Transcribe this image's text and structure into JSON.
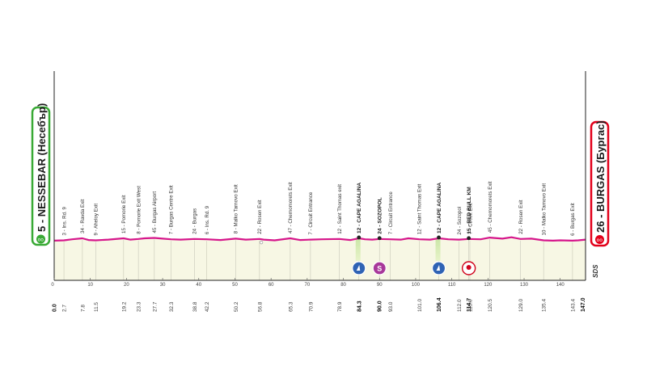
{
  "start": {
    "name": "5 - NESSEBAR (Несебър)",
    "color": "#39a935"
  },
  "finish": {
    "name": "26 - BURGAS (Бургас)",
    "color": "#e2001a"
  },
  "watermark": "SDS",
  "profile_color": "#d6168b",
  "area_color": "#f7f7e4",
  "chart_data": {
    "type": "area",
    "x_ticks": [
      0,
      10,
      20,
      30,
      40,
      50,
      60,
      70,
      80,
      90,
      100,
      110,
      120,
      130,
      140
    ],
    "xlim": [
      0,
      147
    ],
    "elevation": [
      [
        0,
        5
      ],
      [
        2.7,
        6
      ],
      [
        5,
        9
      ],
      [
        7.8,
        12
      ],
      [
        9.5,
        7
      ],
      [
        11.5,
        6
      ],
      [
        15,
        8
      ],
      [
        19.2,
        12
      ],
      [
        21,
        8
      ],
      [
        23.3,
        10
      ],
      [
        25,
        12
      ],
      [
        27.7,
        13
      ],
      [
        30,
        11
      ],
      [
        32.3,
        9
      ],
      [
        35,
        8
      ],
      [
        38.8,
        10
      ],
      [
        42.2,
        9
      ],
      [
        46,
        7
      ],
      [
        50.2,
        11
      ],
      [
        53,
        8
      ],
      [
        56.8,
        10
      ],
      [
        58,
        8
      ],
      [
        61,
        6
      ],
      [
        65.3,
        12
      ],
      [
        68,
        7
      ],
      [
        70.9,
        8
      ],
      [
        74,
        9
      ],
      [
        78.9,
        10
      ],
      [
        82,
        7
      ],
      [
        84.3,
        12
      ],
      [
        86,
        9
      ],
      [
        88,
        8
      ],
      [
        90,
        10
      ],
      [
        93,
        9
      ],
      [
        96,
        8
      ],
      [
        98,
        12
      ],
      [
        101,
        9
      ],
      [
        104,
        8
      ],
      [
        106.4,
        12
      ],
      [
        109,
        9
      ],
      [
        112,
        8
      ],
      [
        114.7,
        10
      ],
      [
        118,
        9
      ],
      [
        120.5,
        14
      ],
      [
        124,
        11
      ],
      [
        126.5,
        15
      ],
      [
        129,
        10
      ],
      [
        132,
        11
      ],
      [
        135.4,
        6
      ],
      [
        138,
        5
      ],
      [
        140,
        6
      ],
      [
        143.4,
        5
      ],
      [
        145,
        6
      ],
      [
        147,
        8
      ]
    ],
    "points": [
      {
        "km": "0.0",
        "x": 0,
        "label": "5 - NESSEBAR (Несебър)",
        "kind": "start"
      },
      {
        "km": "2.7",
        "x": 2.7,
        "label": "3 - Ins. Rd. 9"
      },
      {
        "km": "7.8",
        "x": 7.8,
        "label": "34 - Ravda Exit"
      },
      {
        "km": "11.5",
        "x": 11.5,
        "label": "9 - Aheloy Exit"
      },
      {
        "km": "19.2",
        "x": 19.2,
        "label": "15 - Pomorie Exit"
      },
      {
        "km": "23.3",
        "x": 23.3,
        "label": "8 - Pomorie Exit West"
      },
      {
        "km": "27.7",
        "x": 27.7,
        "label": "45 - Burgas Airport"
      },
      {
        "km": "32.3",
        "x": 32.3,
        "label": "7 - Burgas Centre Exit"
      },
      {
        "km": "38.8",
        "x": 38.8,
        "label": "24 - Burgas"
      },
      {
        "km": "42.2",
        "x": 42.2,
        "label": "6 - Ins. Rd. 9"
      },
      {
        "km": "50.2",
        "x": 50.2,
        "label": "8 - Malko Tarnovo Exit"
      },
      {
        "km": "56.8",
        "x": 56.8,
        "label": "22 - Rosen Exit"
      },
      {
        "km": "65.3",
        "x": 65.3,
        "label": "47 - Chernomorets Exit"
      },
      {
        "km": "70.9",
        "x": 70.9,
        "label": "7 - Circuit Entrance"
      },
      {
        "km": "78.9",
        "x": 78.9,
        "label": "12 - Saint Thomas exit"
      },
      {
        "km": "84.3",
        "x": 84.3,
        "label": "12 - CAPE AGALINA",
        "kind": "climb"
      },
      {
        "km": "90.0",
        "x": 90.0,
        "label": "24 - SOZOPOL",
        "kind": "sprint"
      },
      {
        "km": "93.0",
        "x": 93.0,
        "label": "7 - Circuit Entrance"
      },
      {
        "km": "101.0",
        "x": 101.0,
        "label": "12 - Saint Thomas Exit"
      },
      {
        "km": "106.4",
        "x": 106.4,
        "label": "12 - CAPE AGALINA",
        "kind": "climb"
      },
      {
        "km": "112.0",
        "x": 112.0,
        "label": "24 - Sozopol"
      },
      {
        "km": "114.7",
        "x": 114.7,
        "label": "15 - RED BULL KM",
        "kind": "redbull"
      },
      {
        "km": "115.0",
        "x": 115.0,
        "label": "7 - Circuit Exit"
      },
      {
        "km": "120.5",
        "x": 120.5,
        "label": "45 - Chernomorets Exit"
      },
      {
        "km": "129.0",
        "x": 129.0,
        "label": "22 - Rosen Exit"
      },
      {
        "km": "135.4",
        "x": 135.4,
        "label": "10 - Malko Tarnovo Exit"
      },
      {
        "km": "143.4",
        "x": 143.4,
        "label": "6 - Burgas Exit"
      },
      {
        "km": "147.0",
        "x": 147,
        "label": "26 - BURGAS (Бургас)",
        "kind": "finish"
      }
    ]
  }
}
